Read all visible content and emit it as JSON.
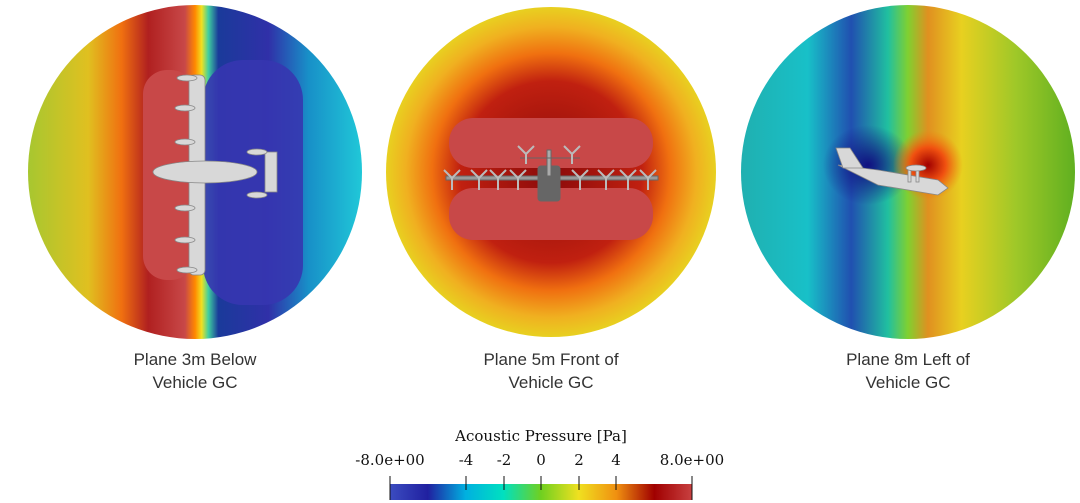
{
  "panels": [
    {
      "caption_line1": "Plane 3m Below",
      "caption_line2": "Vehicle GC"
    },
    {
      "caption_line1": "Plane 5m Front of",
      "caption_line2": "Vehicle GC"
    },
    {
      "caption_line1": "Plane 8m Left of",
      "caption_line2": "Vehicle GC"
    }
  ],
  "colorbar": {
    "title": "Acoustic Pressure [Pa]",
    "min_label": "-8.0e+00",
    "max_label": "8.0e+00",
    "ticks": [
      "-4",
      "-2",
      "0",
      "2",
      "4"
    ],
    "colors": [
      "#3b4cc0",
      "#2020a0",
      "#00b0e0",
      "#00e0c0",
      "#70d020",
      "#f0e020",
      "#f09010",
      "#a00000",
      "#c84040"
    ]
  }
}
